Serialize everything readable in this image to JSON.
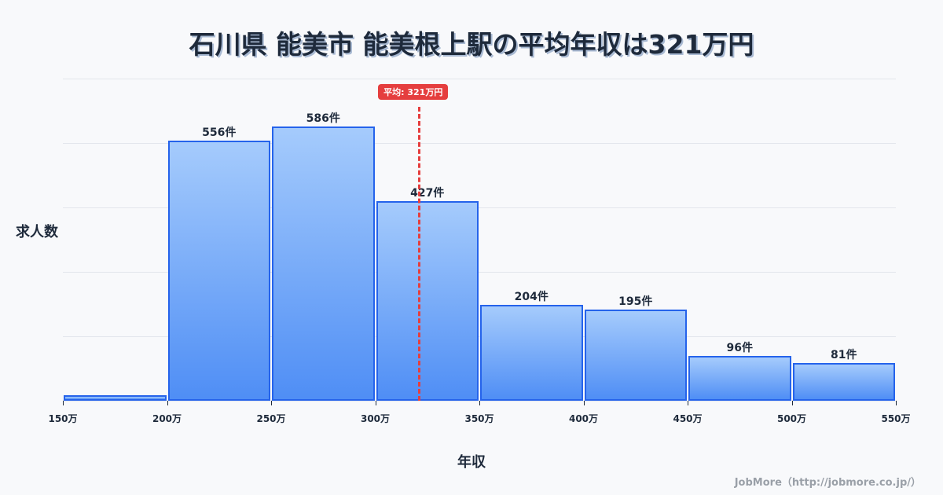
{
  "title": "石川県 能美市 能美根上駅の平均年収は321万円",
  "credit": "JobMore（http://jobmore.co.jp/）",
  "mean_badge": "平均: 321万円",
  "chart_data": {
    "type": "bar",
    "title": "石川県 能美市 能美根上駅の平均年収は321万円",
    "xlabel": "年収",
    "ylabel": "求人数",
    "bins": [
      "150-200万",
      "200-250万",
      "250-300万",
      "300-350万",
      "350-400万",
      "400-450万",
      "450-500万",
      "500-550万"
    ],
    "x_ticks": [
      "150万",
      "200万",
      "250万",
      "300万",
      "350万",
      "400万",
      "450万",
      "500万",
      "550万"
    ],
    "values": [
      12,
      556,
      586,
      427,
      204,
      195,
      96,
      81
    ],
    "labels": [
      "",
      "556件",
      "586件",
      "427件",
      "204件",
      "195件",
      "96件",
      "81件"
    ],
    "mean": 321,
    "mean_label": "平均: 321万円",
    "xlim": [
      150,
      550
    ],
    "ylim": [
      0,
      688
    ],
    "grid": true,
    "colors": {
      "bar_fill_top": "#a5cbfc",
      "bar_fill_bottom": "#4f8ef5",
      "bar_border": "#2563eb",
      "mean_line": "#e53e3e"
    }
  }
}
